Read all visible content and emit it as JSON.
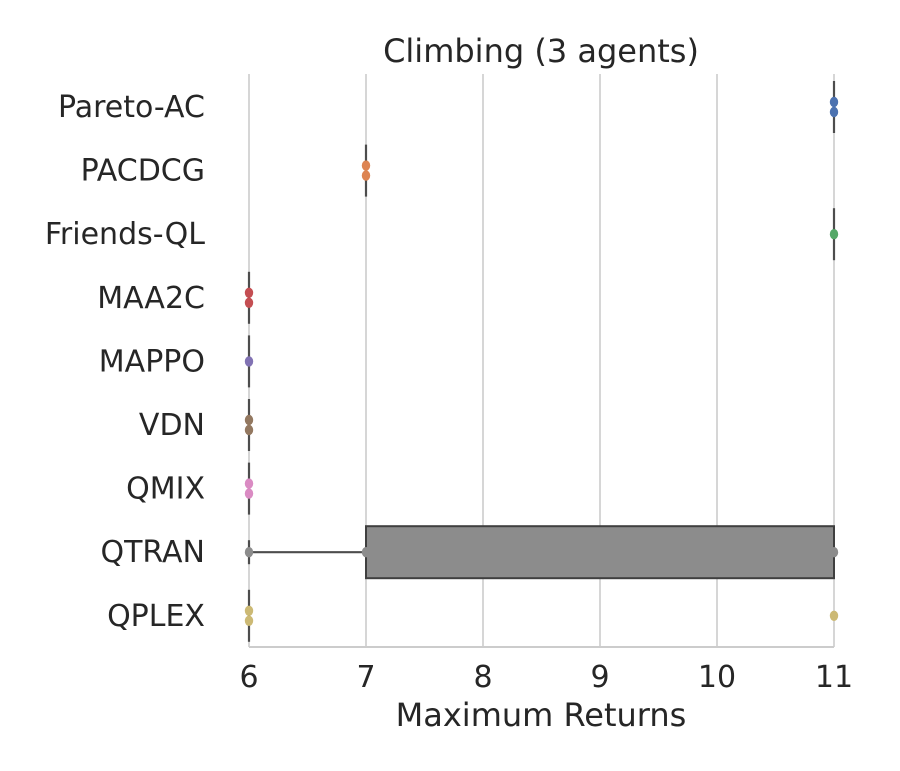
{
  "chart_data": {
    "type": "box",
    "orientation": "horizontal",
    "title": "Climbing (3 agents)",
    "xlabel": "Maximum Returns",
    "ylabel": "",
    "xlim": [
      6,
      11
    ],
    "xticks": [
      6,
      7,
      8,
      9,
      10,
      11
    ],
    "grid": "vertical",
    "categories": [
      "Pareto-AC",
      "PACDCG",
      "Friends-QL",
      "MAA2C",
      "MAPPO",
      "VDN",
      "QMIX",
      "QTRAN",
      "QPLEX"
    ],
    "series": [
      {
        "category": "Pareto-AC",
        "color": "#4c72b0",
        "box": [
          11,
          11
        ],
        "whiskers": [
          11,
          11
        ],
        "points": [
          11,
          11
        ]
      },
      {
        "category": "PACDCG",
        "color": "#dd8452",
        "box": [
          7,
          7
        ],
        "whiskers": [
          7,
          7
        ],
        "points": [
          7,
          7
        ]
      },
      {
        "category": "Friends-QL",
        "color": "#55a868",
        "box": [
          11,
          11
        ],
        "whiskers": [
          11,
          11
        ],
        "points": [
          11
        ]
      },
      {
        "category": "MAA2C",
        "color": "#c44e52",
        "box": [
          6,
          6
        ],
        "whiskers": [
          6,
          6
        ],
        "points": [
          6,
          6
        ]
      },
      {
        "category": "MAPPO",
        "color": "#8172b3",
        "box": [
          6,
          6
        ],
        "whiskers": [
          6,
          6
        ],
        "points": [
          6
        ]
      },
      {
        "category": "VDN",
        "color": "#937860",
        "box": [
          6,
          6
        ],
        "whiskers": [
          6,
          6
        ],
        "points": [
          6,
          6
        ]
      },
      {
        "category": "QMIX",
        "color": "#da8bc3",
        "box": [
          6,
          6
        ],
        "whiskers": [
          6,
          6
        ],
        "points": [
          6,
          6
        ]
      },
      {
        "category": "QTRAN",
        "color": "#8c8c8c",
        "box": [
          7,
          11
        ],
        "whiskers": [
          6,
          11
        ],
        "points": [
          6,
          7,
          11
        ]
      },
      {
        "category": "QPLEX",
        "color": "#ccb974",
        "box": [
          6,
          6
        ],
        "whiskers": [
          6,
          6
        ],
        "points": [
          6,
          6,
          11
        ]
      }
    ]
  }
}
